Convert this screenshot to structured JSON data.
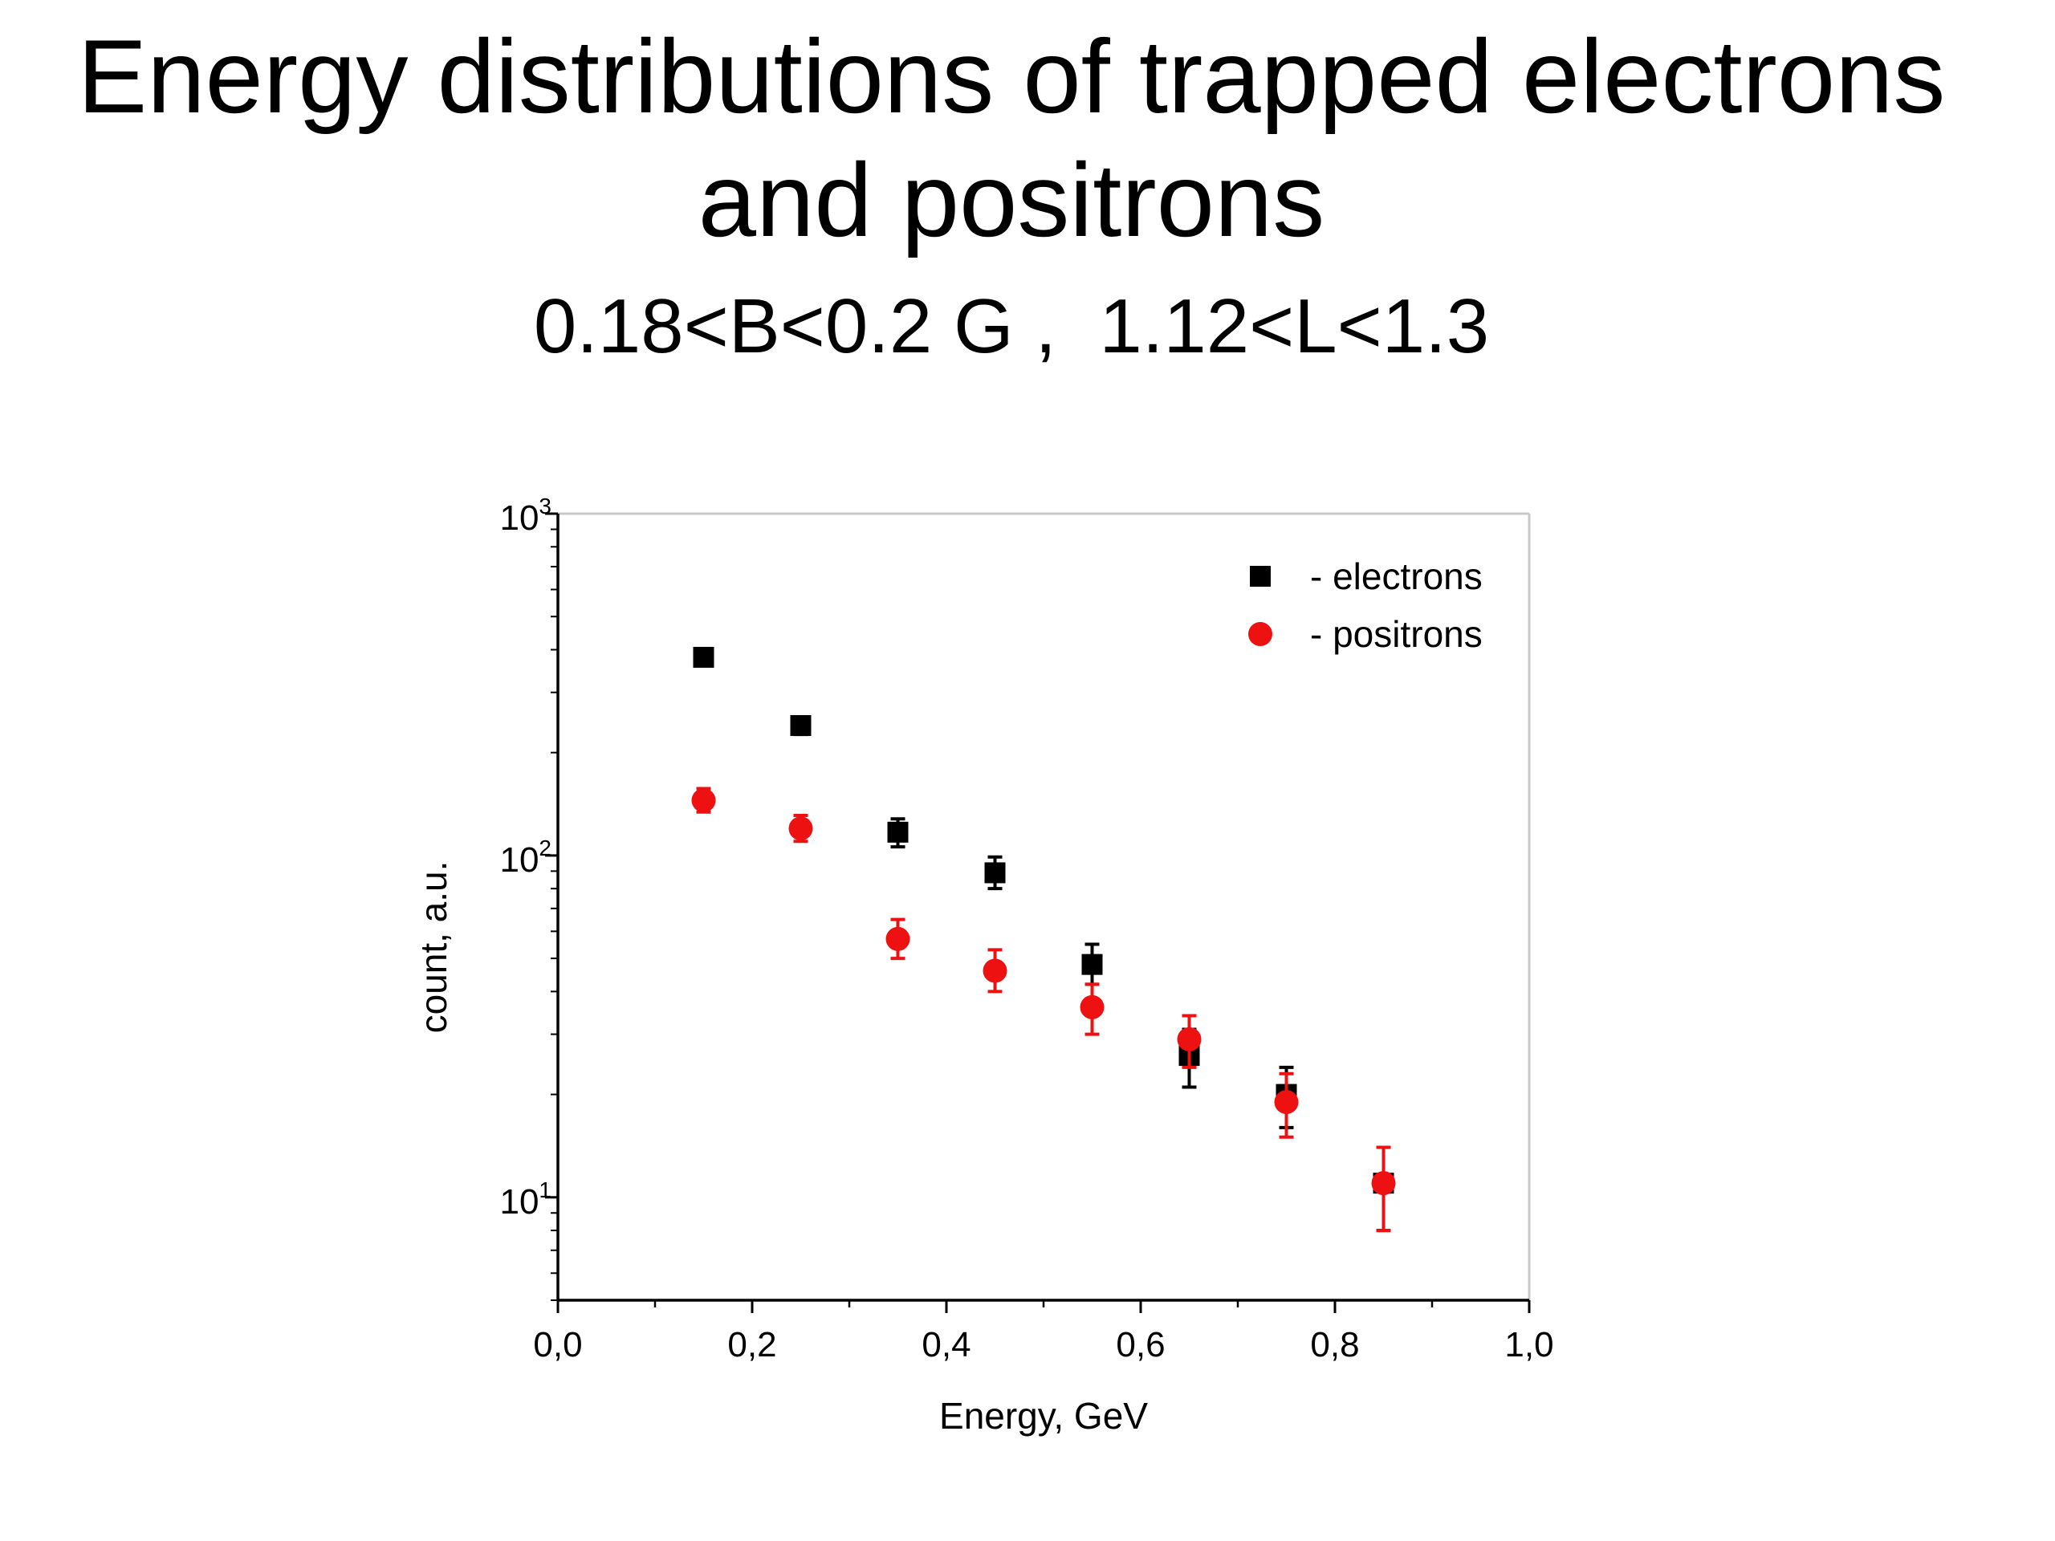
{
  "slide": {
    "title_line1": "Energy distributions of trapped electrons",
    "title_line2": "and positrons",
    "subtitle": "0.18<B<0.2 G ,  1.12<L<1.3"
  },
  "chart_data": {
    "type": "scatter",
    "title": "",
    "xlabel": "Energy, GeV",
    "ylabel": "count, a.u.",
    "xlim": [
      0.0,
      1.0
    ],
    "ylim": [
      5,
      1000
    ],
    "yscale": "log",
    "x_ticks": [
      0.0,
      0.2,
      0.4,
      0.6,
      0.8,
      1.0
    ],
    "x_tick_labels": [
      "0,0",
      "0,2",
      "0,4",
      "0,6",
      "0,8",
      "1,0"
    ],
    "y_ticks": [
      10,
      100,
      1000
    ],
    "y_tick_labels": [
      {
        "base": "10",
        "exp": "1"
      },
      {
        "base": "10",
        "exp": "2"
      },
      {
        "base": "10",
        "exp": "3"
      }
    ],
    "grid": false,
    "legend_position": "top-right",
    "series": [
      {
        "name": "- electrons",
        "marker": "square",
        "color": "#000000",
        "points": [
          {
            "x": 0.15,
            "y": 380,
            "ylo": 362,
            "yhi": 398
          },
          {
            "x": 0.25,
            "y": 240,
            "ylo": 226,
            "yhi": 254
          },
          {
            "x": 0.35,
            "y": 117,
            "ylo": 106,
            "yhi": 128
          },
          {
            "x": 0.45,
            "y": 89,
            "ylo": 80,
            "yhi": 99
          },
          {
            "x": 0.55,
            "y": 48,
            "ylo": 42,
            "yhi": 55
          },
          {
            "x": 0.65,
            "y": 26,
            "ylo": 21,
            "yhi": 31
          },
          {
            "x": 0.75,
            "y": 20,
            "ylo": 16,
            "yhi": 24
          },
          {
            "x": 0.85,
            "y": 11,
            "ylo": 8,
            "yhi": 14
          }
        ]
      },
      {
        "name": "- positrons",
        "marker": "circle",
        "color": "#ee1111",
        "points": [
          {
            "x": 0.15,
            "y": 145,
            "ylo": 134,
            "yhi": 157
          },
          {
            "x": 0.25,
            "y": 120,
            "ylo": 110,
            "yhi": 131
          },
          {
            "x": 0.35,
            "y": 57,
            "ylo": 50,
            "yhi": 65
          },
          {
            "x": 0.45,
            "y": 46,
            "ylo": 40,
            "yhi": 53
          },
          {
            "x": 0.55,
            "y": 36,
            "ylo": 30,
            "yhi": 42
          },
          {
            "x": 0.65,
            "y": 29,
            "ylo": 24,
            "yhi": 34
          },
          {
            "x": 0.75,
            "y": 19,
            "ylo": 15,
            "yhi": 23
          },
          {
            "x": 0.85,
            "y": 11,
            "ylo": 8,
            "yhi": 14
          }
        ]
      }
    ]
  }
}
